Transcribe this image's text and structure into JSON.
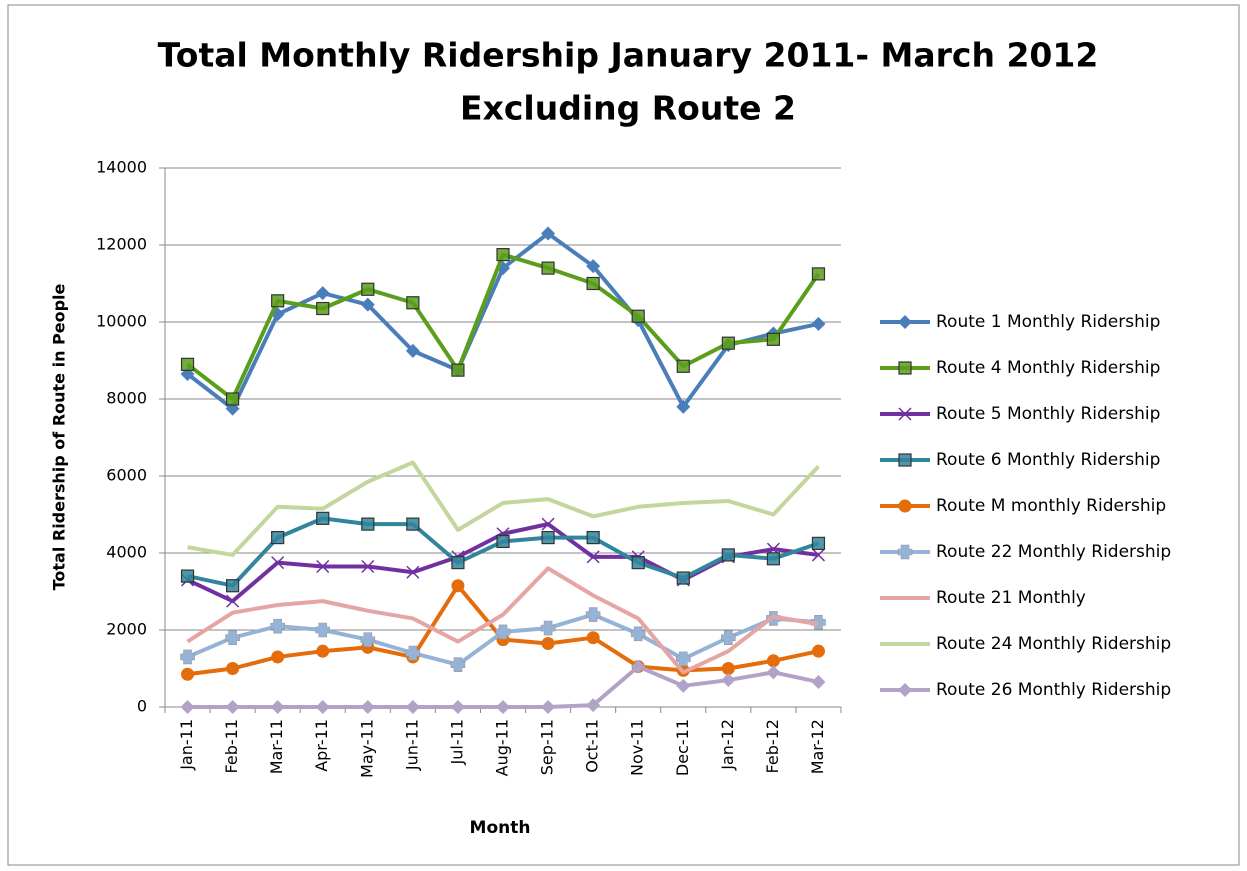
{
  "chart_data": {
    "type": "line",
    "title": "Total Monthly Ridership January 2011- March 2012",
    "subtitle": "Excluding Route 2",
    "x_label": "Month",
    "y_label": "Total Ridership of Route in People",
    "categories": [
      "Jan-11",
      "Feb-11",
      "Mar-11",
      "Apr-11",
      "May-11",
      "Jun-11",
      "Jul-11",
      "Aug-11",
      "Sep-11",
      "Oct-11",
      "Nov-11",
      "Dec-11",
      "Jan-12",
      "Feb-12",
      "Mar-12"
    ],
    "ylim": [
      0,
      14000
    ],
    "yticks": [
      0,
      2000,
      4000,
      6000,
      8000,
      10000,
      12000,
      14000
    ],
    "grid": true,
    "legend": "right",
    "series": [
      {
        "name": "Route 1 Monthly Ridership",
        "color": "#4a7ebb",
        "marker": "diamond",
        "values": [
          8650,
          7750,
          10200,
          10750,
          10450,
          9250,
          8750,
          11400,
          12300,
          11450,
          10050,
          7800,
          9400,
          9700,
          9950
        ]
      },
      {
        "name": "Route 4 Monthly Ridership",
        "color": "#5a9e1c",
        "marker": "square",
        "values": [
          8900,
          8000,
          10550,
          10350,
          10850,
          10500,
          8750,
          11750,
          11400,
          11000,
          10150,
          8850,
          9450,
          9550,
          11250
        ]
      },
      {
        "name": "Route 5 Monthly Ridership",
        "color": "#7030a0",
        "marker": "x",
        "values": [
          3300,
          2750,
          3750,
          3650,
          3650,
          3500,
          3900,
          4500,
          4750,
          3900,
          3900,
          3300,
          3900,
          4100,
          3950
        ]
      },
      {
        "name": "Route 6 Monthly Ridership",
        "color": "#31859c",
        "marker": "square",
        "values": [
          3400,
          3150,
          4400,
          4900,
          4750,
          4750,
          3750,
          4300,
          4400,
          4400,
          3750,
          3350,
          3950,
          3850,
          4250
        ]
      },
      {
        "name": "Route M monthly Ridership",
        "color": "#e46c0a",
        "marker": "circle",
        "values": [
          850,
          1000,
          1300,
          1450,
          1550,
          1300,
          3150,
          1750,
          1650,
          1800,
          1050,
          950,
          1000,
          1200,
          1450
        ]
      },
      {
        "name": "Route 22 Monthly Ridership",
        "color": "#95b3d7",
        "marker": "plus",
        "values": [
          1300,
          1800,
          2100,
          2000,
          1750,
          1400,
          1100,
          1950,
          2050,
          2400,
          1900,
          1250,
          1800,
          2300,
          2200
        ]
      },
      {
        "name": "Route 21 Monthly",
        "color": "#e6a5a5",
        "marker": "none",
        "values": [
          1700,
          2450,
          2650,
          2750,
          2500,
          2300,
          1700,
          2400,
          3600,
          2900,
          2300,
          900,
          1450,
          2350,
          2150
        ]
      },
      {
        "name": "Route 24 Monthly Ridership",
        "color": "#c3d69b",
        "marker": "none",
        "values": [
          4150,
          3950,
          5200,
          5150,
          5850,
          6350,
          4600,
          5300,
          5400,
          4950,
          5200,
          5300,
          5350,
          5000,
          6250
        ]
      },
      {
        "name": "Route 26 Monthly Ridership",
        "color": "#b3a2c7",
        "marker": "diamond",
        "values": [
          0,
          0,
          0,
          0,
          0,
          0,
          0,
          0,
          0,
          50,
          1050,
          550,
          700,
          900,
          650
        ]
      }
    ]
  }
}
